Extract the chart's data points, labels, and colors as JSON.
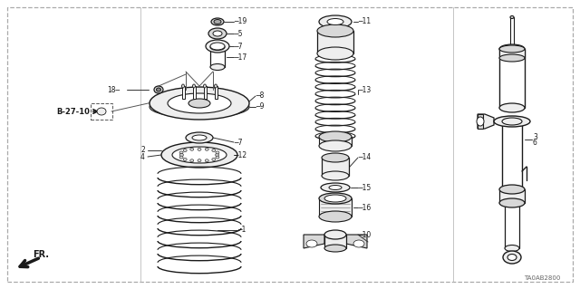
{
  "bg_color": "#ffffff",
  "border_color": "#999999",
  "line_color": "#1a1a1a",
  "gray_fill": "#d8d8d8",
  "light_fill": "#eeeeee",
  "diagram_code": "TA0AB2800",
  "fig_w": 6.4,
  "fig_h": 3.19,
  "dpi": 100
}
